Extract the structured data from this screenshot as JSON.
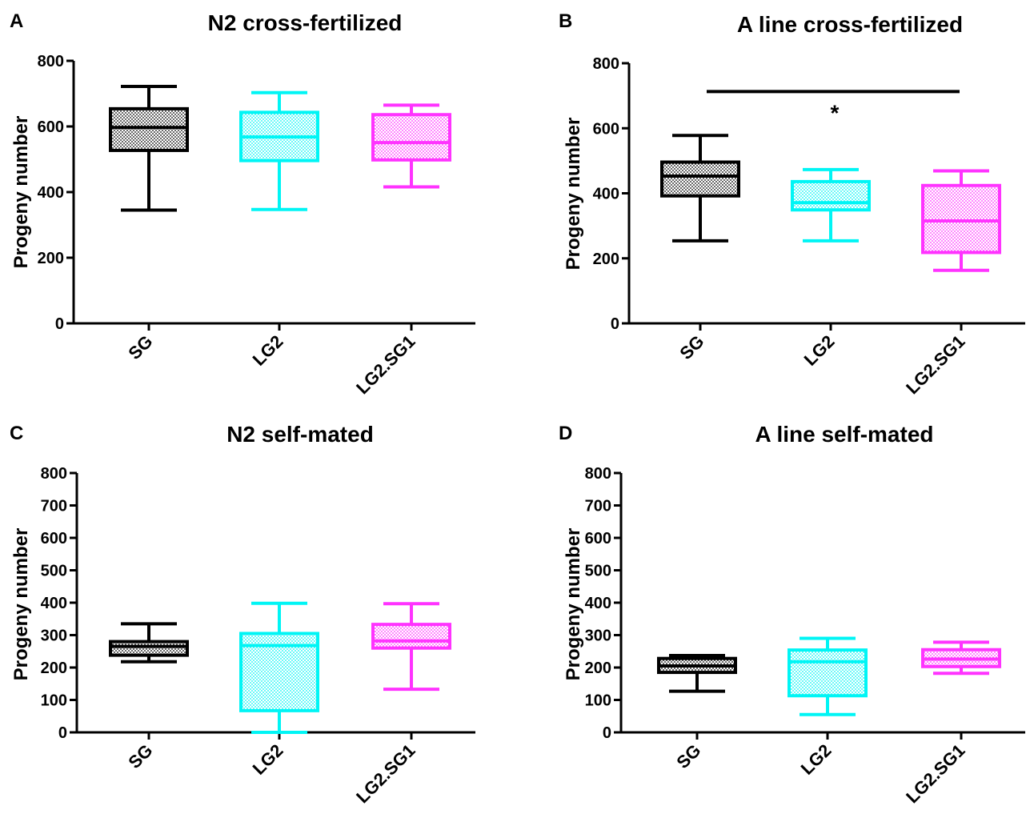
{
  "chart_data": [
    {
      "panel_letter": "A",
      "title": "N2 cross-fertilized",
      "type": "boxplot",
      "ylabel": "Progeny number",
      "xlabel": "",
      "ylim": [
        0,
        800
      ],
      "yticks": [
        0,
        200,
        400,
        600,
        800
      ],
      "categories": [
        "SG",
        "LG2",
        "LG2.SG1"
      ],
      "boxes": [
        {
          "category": "SG",
          "color": "#000000",
          "min": 345,
          "q1": 527,
          "median": 597,
          "q3": 654,
          "max": 722
        },
        {
          "category": "LG2",
          "color": "#00f5f5",
          "min": 347,
          "q1": 496,
          "median": 568,
          "q3": 643,
          "max": 703
        },
        {
          "category": "LG2.SG1",
          "color": "#ff33ff",
          "min": 416,
          "q1": 498,
          "median": 551,
          "q3": 636,
          "max": 665
        }
      ],
      "significance": []
    },
    {
      "panel_letter": "B",
      "title": "A line cross-fertilized",
      "type": "boxplot",
      "ylabel": "Progeny number",
      "xlabel": "",
      "ylim": [
        0,
        800
      ],
      "yticks": [
        0,
        200,
        400,
        600,
        800
      ],
      "categories": [
        "SG",
        "LG2",
        "LG2.SG1"
      ],
      "boxes": [
        {
          "category": "SG",
          "color": "#000000",
          "min": 254,
          "q1": 392,
          "median": 453,
          "q3": 496,
          "max": 578
        },
        {
          "category": "LG2",
          "color": "#00f5f5",
          "min": 254,
          "q1": 349,
          "median": 371,
          "q3": 436,
          "max": 473
        },
        {
          "category": "LG2.SG1",
          "color": "#ff33ff",
          "min": 163,
          "q1": 218,
          "median": 315,
          "q3": 424,
          "max": 469
        }
      ],
      "significance": [
        {
          "from": "SG",
          "to": "LG2.SG1",
          "y": 713,
          "label": "*"
        }
      ]
    },
    {
      "panel_letter": "C",
      "title": "N2 self-mated",
      "type": "boxplot",
      "ylabel": "Progeny number",
      "xlabel": "",
      "ylim": [
        0,
        800
      ],
      "yticks": [
        0,
        100,
        200,
        300,
        400,
        500,
        600,
        700,
        800
      ],
      "categories": [
        "SG",
        "LG2",
        "LG2.SG1"
      ],
      "boxes": [
        {
          "category": "SG",
          "color": "#000000",
          "min": 218,
          "q1": 238,
          "median": 265,
          "q3": 280,
          "max": 335
        },
        {
          "category": "LG2",
          "color": "#00f5f5",
          "min": 0,
          "q1": 67,
          "median": 268,
          "q3": 305,
          "max": 398
        },
        {
          "category": "LG2.SG1",
          "color": "#ff33ff",
          "min": 133,
          "q1": 260,
          "median": 282,
          "q3": 333,
          "max": 397
        }
      ],
      "significance": []
    },
    {
      "panel_letter": "D",
      "title": "A line self-mated",
      "type": "boxplot",
      "ylabel": "Progeny number",
      "xlabel": "",
      "ylim": [
        0,
        800
      ],
      "yticks": [
        0,
        100,
        200,
        300,
        400,
        500,
        600,
        700,
        800
      ],
      "categories": [
        "SG",
        "LG2",
        "LG2.SG1"
      ],
      "boxes": [
        {
          "category": "SG",
          "color": "#000000",
          "min": 127,
          "q1": 185,
          "median": 205,
          "q3": 228,
          "max": 237
        },
        {
          "category": "LG2",
          "color": "#00f5f5",
          "min": 55,
          "q1": 113,
          "median": 218,
          "q3": 254,
          "max": 290
        },
        {
          "category": "LG2.SG1",
          "color": "#ff33ff",
          "min": 182,
          "q1": 203,
          "median": 226,
          "q3": 255,
          "max": 278
        }
      ],
      "significance": []
    }
  ]
}
